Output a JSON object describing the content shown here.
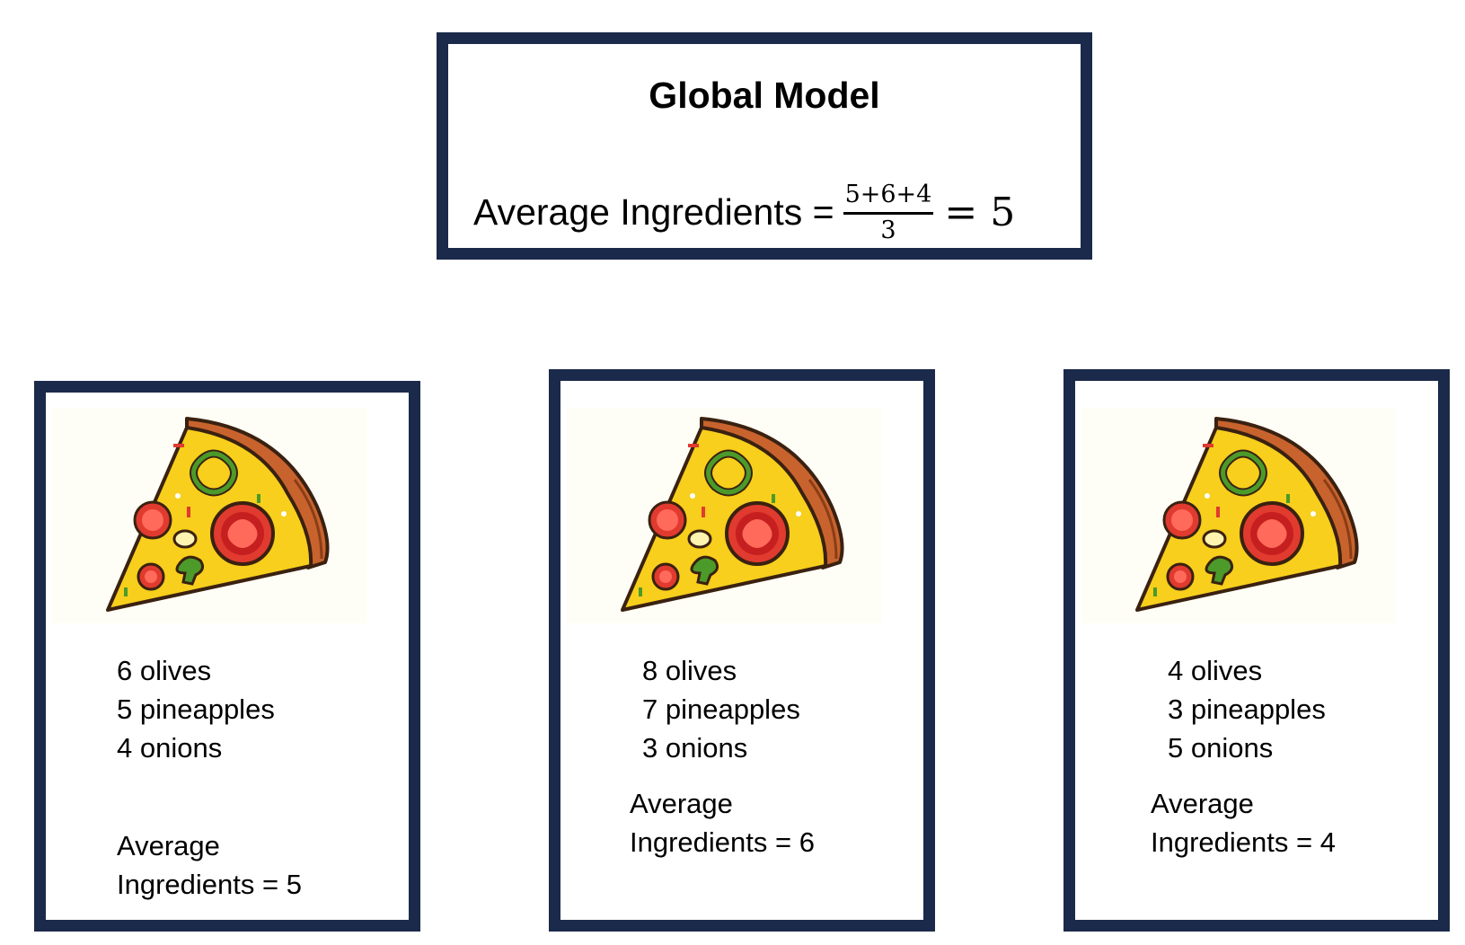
{
  "global_model": {
    "title": "Global Model",
    "formula_label": "Average Ingredients =",
    "numerator": "5+6+4",
    "denominator": "3",
    "equals": "=",
    "result": "5"
  },
  "clients": [
    {
      "ingredients": [
        "6 olives",
        "5 pineapples",
        "4 onions"
      ],
      "average_label": "Average",
      "average_line": "Ingredients = 5"
    },
    {
      "ingredients": [
        "8 olives",
        "7 pineapples",
        "3 onions"
      ],
      "average_label": "Average",
      "average_line": "Ingredients = 6"
    },
    {
      "ingredients": [
        "4 olives",
        "3 pineapples",
        "5 onions"
      ],
      "average_label": "Average",
      "average_line": "Ingredients = 4"
    }
  ],
  "colors": {
    "box_border": "#1b2a4a",
    "crust": "#c8632e",
    "cheese": "#f7cf1c",
    "tomato": "#e13a2f",
    "pepper": "#4b9a2a"
  },
  "icons": [
    "pizza-slice-icon"
  ]
}
